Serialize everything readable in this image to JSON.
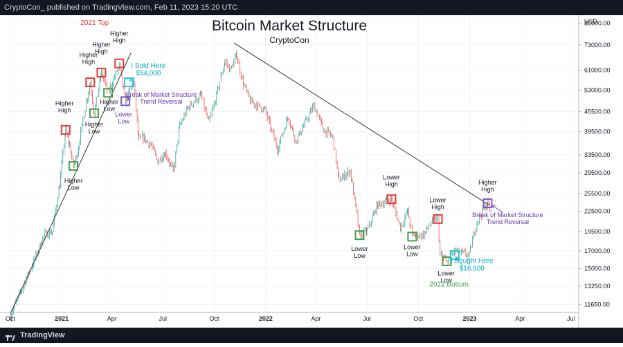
{
  "header": {
    "published_text": "CryptoCon_ published on TradingView.com, Feb 11, 2023 15:20 UTC"
  },
  "footer": {
    "brand": "TradingView",
    "logo_icon": "tradingview-logo-icon"
  },
  "chart_data": {
    "type": "candlestick",
    "title": "Bitcoin Market Structure",
    "subtitle": "CryptoCon",
    "currency_label": "USD",
    "y_scale": "log",
    "ylim": [
      11000,
      90000
    ],
    "y_ticks": [
      85000,
      73000,
      61000,
      53000,
      45500,
      39500,
      33500,
      29500,
      25500,
      22500,
      19500,
      17000,
      15000,
      13250,
      11650
    ],
    "y_tick_labels": [
      "85000.00",
      "73000.00",
      "61000.00",
      "53000.00",
      "45500.00",
      "39500.00",
      "33500.00",
      "29500.00",
      "25500.00",
      "22500.00",
      "19500.00",
      "17000.00",
      "15000.00",
      "13250.00",
      "11650.00"
    ],
    "x_range": [
      "2020-09-25",
      "2023-07-15"
    ],
    "x_ticks": [
      {
        "date": "2020-10-01",
        "label": "Oct",
        "bold": false
      },
      {
        "date": "2021-01-01",
        "label": "2021",
        "bold": true
      },
      {
        "date": "2021-04-01",
        "label": "Apr",
        "bold": false
      },
      {
        "date": "2021-07-01",
        "label": "Jul",
        "bold": false
      },
      {
        "date": "2021-10-01",
        "label": "Oct",
        "bold": false
      },
      {
        "date": "2022-01-01",
        "label": "2022",
        "bold": true
      },
      {
        "date": "2022-04-01",
        "label": "Apr",
        "bold": false
      },
      {
        "date": "2022-07-01",
        "label": "Jul",
        "bold": false
      },
      {
        "date": "2022-10-01",
        "label": "Oct",
        "bold": false
      },
      {
        "date": "2023-01-01",
        "label": "2023",
        "bold": true
      },
      {
        "date": "2023-04-01",
        "label": "Apr",
        "bold": false
      },
      {
        "date": "2023-07-01",
        "label": "Jul",
        "bold": false
      }
    ],
    "colors": {
      "up": "#26a69a",
      "down": "#ef5350",
      "red_box": "#e53935",
      "green_box": "#43a047",
      "purple_box": "#7e57c2",
      "cyan_box": "#26c6da",
      "trendline": "#333333",
      "label_black": "#131722",
      "label_red": "#e53935",
      "label_cyan": "#00acc1",
      "label_purple": "#5e35b1",
      "label_green": "#43a047"
    },
    "price_path": [
      [
        "2020-10-01",
        10700
      ],
      [
        "2020-10-20",
        12800
      ],
      [
        "2020-11-10",
        15500
      ],
      [
        "2020-11-30",
        19000
      ],
      [
        "2020-12-15",
        19500
      ],
      [
        "2020-12-28",
        27000
      ],
      [
        "2021-01-08",
        40000
      ],
      [
        "2021-01-15",
        36000
      ],
      [
        "2021-01-22",
        31000
      ],
      [
        "2021-01-29",
        34000
      ],
      [
        "2021-02-10",
        45000
      ],
      [
        "2021-02-21",
        56000
      ],
      [
        "2021-02-28",
        45000
      ],
      [
        "2021-03-13",
        60000
      ],
      [
        "2021-03-25",
        52000
      ],
      [
        "2021-04-14",
        63000
      ],
      [
        "2021-04-25",
        49000
      ],
      [
        "2021-05-10",
        56000
      ],
      [
        "2021-05-19",
        37000
      ],
      [
        "2021-05-25",
        38000
      ],
      [
        "2021-06-10",
        36000
      ],
      [
        "2021-06-22",
        32000
      ],
      [
        "2021-07-05",
        34000
      ],
      [
        "2021-07-20",
        30000
      ],
      [
        "2021-07-31",
        41000
      ],
      [
        "2021-08-15",
        47000
      ],
      [
        "2021-09-07",
        51000
      ],
      [
        "2021-09-21",
        42000
      ],
      [
        "2021-10-01",
        48000
      ],
      [
        "2021-10-20",
        65000
      ],
      [
        "2021-10-30",
        61000
      ],
      [
        "2021-11-10",
        68000
      ],
      [
        "2021-11-20",
        57000
      ],
      [
        "2021-12-04",
        49000
      ],
      [
        "2021-12-31",
        46000
      ],
      [
        "2022-01-22",
        35000
      ],
      [
        "2022-02-10",
        44000
      ],
      [
        "2022-02-24",
        37000
      ],
      [
        "2022-03-28",
        47500
      ],
      [
        "2022-04-15",
        40000
      ],
      [
        "2022-05-01",
        38000
      ],
      [
        "2022-05-12",
        28000
      ],
      [
        "2022-06-01",
        30000
      ],
      [
        "2022-06-13",
        22000
      ],
      [
        "2022-06-18",
        19000
      ],
      [
        "2022-07-01",
        19500
      ],
      [
        "2022-07-20",
        23500
      ],
      [
        "2022-08-14",
        24500
      ],
      [
        "2022-08-30",
        20000
      ],
      [
        "2022-09-12",
        22500
      ],
      [
        "2022-09-20",
        19000
      ],
      [
        "2022-10-10",
        19000
      ],
      [
        "2022-10-26",
        21000
      ],
      [
        "2022-11-05",
        21300
      ],
      [
        "2022-11-09",
        16500
      ],
      [
        "2022-11-21",
        15800
      ],
      [
        "2022-12-05",
        17000
      ],
      [
        "2022-12-31",
        16500
      ],
      [
        "2023-01-14",
        21000
      ],
      [
        "2023-02-02",
        23800
      ],
      [
        "2023-02-10",
        21800
      ]
    ],
    "trendlines": [
      {
        "name": "uptrend-line",
        "from": [
          "2020-10-01",
          10900
        ],
        "to": [
          "2021-05-05",
          69000
        ]
      },
      {
        "name": "downtrend-line",
        "from": [
          "2021-11-05",
          74000
        ],
        "to": [
          "2023-02-05",
          23500
        ]
      }
    ],
    "boxes": [
      {
        "kind": "red",
        "date": "2021-01-08",
        "price": 40000
      },
      {
        "kind": "green",
        "date": "2021-01-22",
        "price": 31000
      },
      {
        "kind": "red",
        "date": "2021-02-21",
        "price": 56000
      },
      {
        "kind": "green",
        "date": "2021-02-28",
        "price": 45000
      },
      {
        "kind": "red",
        "date": "2021-03-13",
        "price": 60000
      },
      {
        "kind": "green",
        "date": "2021-03-25",
        "price": 52000
      },
      {
        "kind": "red",
        "date": "2021-04-14",
        "price": 64000
      },
      {
        "kind": "purple",
        "date": "2021-04-25",
        "price": 49000
      },
      {
        "kind": "cyan",
        "date": "2021-05-01",
        "price": 56000
      },
      {
        "kind": "green",
        "date": "2022-06-18",
        "price": 19000
      },
      {
        "kind": "red",
        "date": "2022-08-14",
        "price": 24500
      },
      {
        "kind": "green",
        "date": "2022-09-20",
        "price": 18800
      },
      {
        "kind": "red",
        "date": "2022-11-05",
        "price": 21300
      },
      {
        "kind": "green",
        "date": "2022-11-21",
        "price": 15800
      },
      {
        "kind": "cyan",
        "date": "2022-12-05",
        "price": 16500
      },
      {
        "kind": "purple",
        "date": "2023-02-02",
        "price": 23800
      }
    ],
    "annotations": [
      {
        "lines": [
          "2021 Top"
        ],
        "date": "2021-03-01",
        "price": 84000,
        "color": "label_red",
        "size": 10
      },
      {
        "lines": [
          "Higher",
          "High"
        ],
        "date": "2021-01-06",
        "price": 47500,
        "color": "label_black",
        "size": 9
      },
      {
        "lines": [
          "Higher",
          "Low"
        ],
        "date": "2021-01-22",
        "price": 27500,
        "color": "label_black",
        "size": 9
      },
      {
        "lines": [
          "Higher",
          "High"
        ],
        "date": "2021-02-18",
        "price": 67000,
        "color": "label_black",
        "size": 9
      },
      {
        "lines": [
          "Higher",
          "Low"
        ],
        "date": "2021-02-28",
        "price": 41000,
        "color": "label_black",
        "size": 9
      },
      {
        "lines": [
          "Higher",
          "High"
        ],
        "date": "2021-03-13",
        "price": 72000,
        "color": "label_black",
        "size": 9
      },
      {
        "lines": [
          "Higher",
          "Low"
        ],
        "date": "2021-03-27",
        "price": 48000,
        "color": "label_black",
        "size": 9
      },
      {
        "lines": [
          "Higher",
          "High"
        ],
        "date": "2021-04-14",
        "price": 78000,
        "color": "label_black",
        "size": 9
      },
      {
        "lines": [
          "Lower",
          "Low"
        ],
        "date": "2021-04-22",
        "price": 44000,
        "color": "label_purple",
        "size": 9
      },
      {
        "lines": [
          "I Sold Here",
          "$54,000"
        ],
        "date": "2021-06-05",
        "price": 62000,
        "color": "label_cyan",
        "size": 10
      },
      {
        "lines": [
          "Break of Market Structure",
          "Trend Reversal"
        ],
        "date": "2021-06-28",
        "price": 50500,
        "color": "label_purple",
        "size": 9
      },
      {
        "lines": [
          "Lower",
          "Low"
        ],
        "date": "2022-06-18",
        "price": 17000,
        "color": "label_black",
        "size": 9
      },
      {
        "lines": [
          "Lower",
          "High"
        ],
        "date": "2022-08-14",
        "price": 28200,
        "color": "label_black",
        "size": 9
      },
      {
        "lines": [
          "Lower",
          "Low"
        ],
        "date": "2022-09-20",
        "price": 17200,
        "color": "label_black",
        "size": 9
      },
      {
        "lines": [
          "Lower",
          "High"
        ],
        "date": "2022-11-05",
        "price": 24000,
        "color": "label_black",
        "size": 9
      },
      {
        "lines": [
          "Lower",
          "Low"
        ],
        "date": "2022-11-20",
        "price": 14300,
        "color": "label_black",
        "size": 9
      },
      {
        "lines": [
          "I Bought Here",
          "$16,500"
        ],
        "date": "2023-01-05",
        "price": 15600,
        "color": "label_cyan",
        "size": 10
      },
      {
        "lines": [
          "2022 Bottom"
        ],
        "date": "2022-11-25",
        "price": 13200,
        "color": "label_green",
        "size": 10
      },
      {
        "lines": [
          "Higher",
          "High"
        ],
        "date": "2023-02-02",
        "price": 27200,
        "color": "label_black",
        "size": 9
      },
      {
        "lines": [
          "Break of Market Structure",
          "Trend Reversal"
        ],
        "date": "2023-03-10",
        "price": 21600,
        "color": "label_purple",
        "size": 9
      }
    ],
    "arrows": [
      {
        "from": [
          "2021-05-12",
          58000
        ],
        "to": [
          "2021-05-02",
          56500
        ],
        "color": "cyan_box"
      },
      {
        "from": [
          "2021-05-05",
          50500
        ],
        "to": [
          "2021-04-28",
          49500
        ],
        "color": "purple_box"
      },
      {
        "from": [
          "2022-12-20",
          15300
        ],
        "to": [
          "2022-12-07",
          16300
        ],
        "color": "cyan_box"
      },
      {
        "from": [
          "2023-03-01",
          22300
        ],
        "to": [
          "2023-02-10",
          23500
        ],
        "color": "purple_box"
      }
    ]
  }
}
